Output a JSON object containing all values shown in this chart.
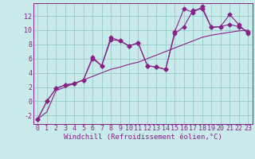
{
  "xlabel": "Windchill (Refroidissement éolien,°C)",
  "bg_color": "#c8eaea",
  "grid_color": "#98cccc",
  "line_color": "#882288",
  "xlim": [
    -0.5,
    23.5
  ],
  "ylim": [
    -3.2,
    13.8
  ],
  "xticks": [
    0,
    1,
    2,
    3,
    4,
    5,
    6,
    7,
    8,
    9,
    10,
    11,
    12,
    13,
    14,
    15,
    16,
    17,
    18,
    19,
    20,
    21,
    22,
    23
  ],
  "yticks": [
    -2,
    0,
    2,
    4,
    6,
    8,
    10,
    12
  ],
  "line1_x": [
    0,
    1,
    2,
    3,
    4,
    5,
    6,
    7,
    8,
    9,
    10,
    11,
    12,
    13,
    14,
    15,
    16,
    17,
    18,
    19,
    20,
    21,
    22,
    23
  ],
  "line1_y": [
    -2.5,
    0.0,
    1.8,
    2.3,
    2.5,
    3.0,
    6.0,
    5.0,
    8.7,
    8.5,
    7.8,
    8.2,
    5.0,
    4.8,
    4.5,
    9.5,
    10.5,
    12.8,
    13.0,
    10.4,
    10.5,
    10.8,
    10.5,
    9.8
  ],
  "line2_x": [
    0,
    1,
    2,
    3,
    4,
    5,
    6,
    7,
    8,
    9,
    10,
    11,
    12,
    13,
    14,
    15,
    16,
    17,
    18,
    19,
    20,
    21,
    22,
    23
  ],
  "line2_y": [
    -2.5,
    0.0,
    1.8,
    2.3,
    2.5,
    3.0,
    6.2,
    5.0,
    9.0,
    8.5,
    7.8,
    8.2,
    5.0,
    4.8,
    4.5,
    9.8,
    13.0,
    12.5,
    13.3,
    10.4,
    10.5,
    12.2,
    10.8,
    9.5
  ],
  "line3_x": [
    0,
    1,
    2,
    3,
    4,
    5,
    6,
    7,
    8,
    9,
    10,
    11,
    12,
    13,
    14,
    15,
    16,
    17,
    18,
    19,
    20,
    21,
    22,
    23
  ],
  "line3_y": [
    -2.5,
    -1.5,
    1.5,
    2.0,
    2.5,
    3.0,
    3.5,
    4.0,
    4.5,
    4.8,
    5.2,
    5.5,
    6.0,
    6.5,
    7.0,
    7.5,
    8.0,
    8.5,
    9.0,
    9.3,
    9.5,
    9.7,
    9.9,
    10.0
  ],
  "font_family": "monospace",
  "xlabel_fontsize": 6.5,
  "tick_fontsize": 6.0,
  "marker": "D",
  "markersize": 2.5,
  "linewidth": 0.8
}
